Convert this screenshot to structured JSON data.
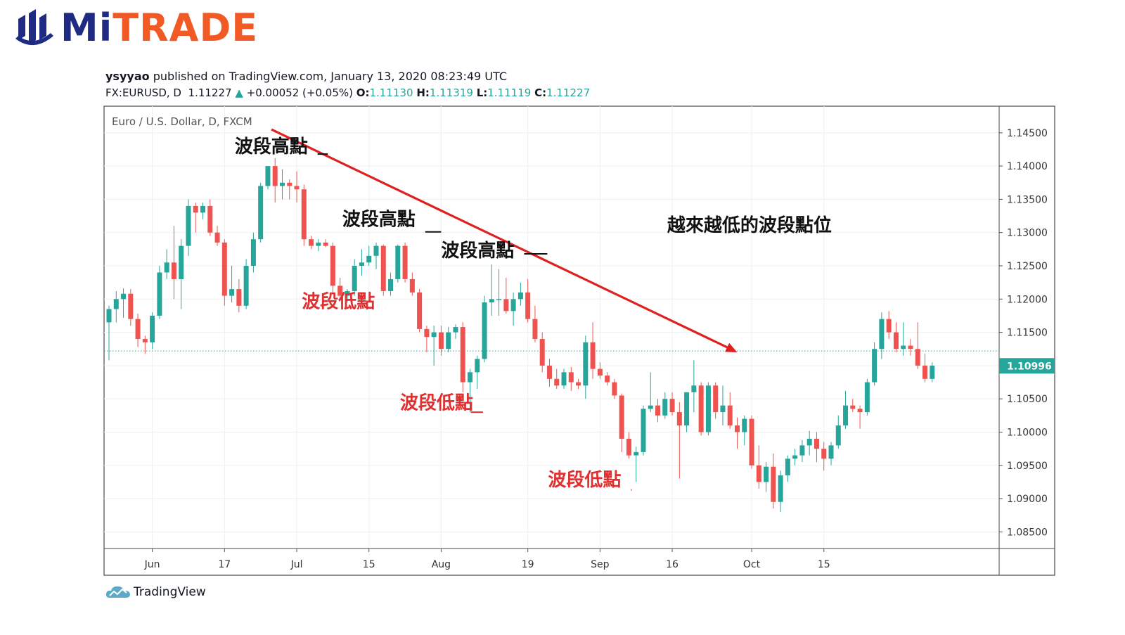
{
  "logo": {
    "mi": "Mi",
    "trade": "TRADE"
  },
  "publish": {
    "author": "ysyyao",
    "text": " published on TradingView.com, January 13, 2020 08:23:49 UTC"
  },
  "symbol": {
    "ticker": "FX:EURUSD, D",
    "close": "1.11227",
    "change": "+0.00052 (+0.05%)",
    "o_label": "O:",
    "o": "1.11130",
    "h_label": "H:",
    "h": "1.11319",
    "l_label": "L:",
    "l": "1.11119",
    "c_label": "C:",
    "c": "1.11227"
  },
  "footer": {
    "brand": "TradingView"
  },
  "colors": {
    "up": "#26a69a",
    "down": "#ef5350",
    "trend": "#e02020",
    "annotation_red": "#e03030",
    "price_tag": "#26a69a"
  },
  "chart_data": {
    "type": "candlestick",
    "title": "Euro / U.S. Dollar, D, FXCM",
    "y_ticks": [
      "1.14500",
      "1.14000",
      "1.13500",
      "1.13000",
      "1.12500",
      "1.12000",
      "1.11500",
      "1.11000",
      "1.10500",
      "1.10000",
      "1.09500",
      "1.09000",
      "1.08500"
    ],
    "ylim": [
      1.0825,
      1.149
    ],
    "x_tick_labels": [
      {
        "label": "Jun",
        "index": 6
      },
      {
        "label": "17",
        "index": 16
      },
      {
        "label": "Jul",
        "index": 26
      },
      {
        "label": "15",
        "index": 36
      },
      {
        "label": "Aug",
        "index": 46
      },
      {
        "label": "19",
        "index": 58
      },
      {
        "label": "Sep",
        "index": 68
      },
      {
        "label": "16",
        "index": 78
      },
      {
        "label": "Oct",
        "index": 89
      },
      {
        "label": "15",
        "index": 99
      }
    ],
    "current_price": "1.10996",
    "current_price_value": 1.10996,
    "dotted_level": 1.1122,
    "candles": [
      [
        1.1165,
        1.119,
        1.1108,
        1.1185
      ],
      [
        1.1185,
        1.1212,
        1.1165,
        1.12
      ],
      [
        1.12,
        1.1216,
        1.1172,
        1.1208
      ],
      [
        1.1208,
        1.1215,
        1.116,
        1.117
      ],
      [
        1.117,
        1.1178,
        1.1128,
        1.114
      ],
      [
        1.114,
        1.1145,
        1.1118,
        1.1135
      ],
      [
        1.1135,
        1.118,
        1.1125,
        1.1175
      ],
      [
        1.1175,
        1.125,
        1.117,
        1.124
      ],
      [
        1.124,
        1.1275,
        1.123,
        1.1255
      ],
      [
        1.1255,
        1.131,
        1.12,
        1.123
      ],
      [
        1.123,
        1.129,
        1.1185,
        1.128
      ],
      [
        1.128,
        1.135,
        1.1265,
        1.134
      ],
      [
        1.134,
        1.1345,
        1.13,
        1.133
      ],
      [
        1.133,
        1.1345,
        1.132,
        1.134
      ],
      [
        1.134,
        1.135,
        1.1295,
        1.13
      ],
      [
        1.13,
        1.131,
        1.128,
        1.1285
      ],
      [
        1.1285,
        1.129,
        1.119,
        1.1205
      ],
      [
        1.1205,
        1.125,
        1.1195,
        1.1215
      ],
      [
        1.1215,
        1.123,
        1.118,
        1.119
      ],
      [
        1.119,
        1.126,
        1.1185,
        1.125
      ],
      [
        1.125,
        1.13,
        1.124,
        1.129
      ],
      [
        1.129,
        1.1375,
        1.1285,
        1.137
      ],
      [
        1.137,
        1.14,
        1.1365,
        1.14
      ],
      [
        1.14,
        1.1412,
        1.1345,
        1.137
      ],
      [
        1.137,
        1.1395,
        1.135,
        1.1375
      ],
      [
        1.1375,
        1.138,
        1.135,
        1.137
      ],
      [
        1.137,
        1.1392,
        1.1345,
        1.1365
      ],
      [
        1.1365,
        1.1372,
        1.128,
        1.129
      ],
      [
        1.129,
        1.1295,
        1.1275,
        1.128
      ],
      [
        1.128,
        1.129,
        1.1272,
        1.1285
      ],
      [
        1.1285,
        1.129,
        1.1278,
        1.128
      ],
      [
        1.128,
        1.1285,
        1.121,
        1.122
      ],
      [
        1.122,
        1.1232,
        1.12,
        1.1205
      ],
      [
        1.1205,
        1.1215,
        1.1195,
        1.1212
      ],
      [
        1.1212,
        1.126,
        1.1205,
        1.125
      ],
      [
        1.125,
        1.1275,
        1.1235,
        1.1255
      ],
      [
        1.1255,
        1.128,
        1.125,
        1.1265
      ],
      [
        1.1265,
        1.1285,
        1.1245,
        1.128
      ],
      [
        1.128,
        1.1282,
        1.1205,
        1.1212
      ],
      [
        1.1212,
        1.124,
        1.1205,
        1.123
      ],
      [
        1.123,
        1.1282,
        1.1225,
        1.128
      ],
      [
        1.128,
        1.1285,
        1.1225,
        1.123
      ],
      [
        1.123,
        1.124,
        1.1205,
        1.121
      ],
      [
        1.121,
        1.1215,
        1.115,
        1.1155
      ],
      [
        1.1155,
        1.116,
        1.112,
        1.1143
      ],
      [
        1.1143,
        1.116,
        1.11,
        1.115
      ],
      [
        1.115,
        1.116,
        1.1115,
        1.1125
      ],
      [
        1.1125,
        1.1158,
        1.112,
        1.115
      ],
      [
        1.115,
        1.1162,
        1.114,
        1.1158
      ],
      [
        1.1158,
        1.1165,
        1.106,
        1.1075
      ],
      [
        1.1075,
        1.1095,
        1.103,
        1.109
      ],
      [
        1.109,
        1.1115,
        1.1065,
        1.111
      ],
      [
        1.111,
        1.1205,
        1.1105,
        1.1195
      ],
      [
        1.1195,
        1.1252,
        1.1175,
        1.12
      ],
      [
        1.12,
        1.1245,
        1.1175,
        1.12
      ],
      [
        1.12,
        1.1232,
        1.1178,
        1.1182
      ],
      [
        1.1182,
        1.121,
        1.116,
        1.12
      ],
      [
        1.12,
        1.1225,
        1.119,
        1.121
      ],
      [
        1.121,
        1.123,
        1.1165,
        1.117
      ],
      [
        1.117,
        1.119,
        1.1135,
        1.114
      ],
      [
        1.114,
        1.115,
        1.109,
        1.11
      ],
      [
        1.11,
        1.111,
        1.1068,
        1.108
      ],
      [
        1.108,
        1.1095,
        1.1065,
        1.107
      ],
      [
        1.107,
        1.1095,
        1.1065,
        1.109
      ],
      [
        1.109,
        1.1098,
        1.1062,
        1.1075
      ],
      [
        1.1075,
        1.108,
        1.1065,
        1.107
      ],
      [
        1.107,
        1.1145,
        1.105,
        1.1135
      ],
      [
        1.1135,
        1.1165,
        1.108,
        1.1095
      ],
      [
        1.1095,
        1.1105,
        1.108,
        1.1085
      ],
      [
        1.1085,
        1.109,
        1.107,
        1.1075
      ],
      [
        1.1075,
        1.108,
        1.105,
        1.1055
      ],
      [
        1.1055,
        1.1058,
        1.097,
        1.099
      ],
      [
        1.099,
        1.1,
        1.096,
        1.0965
      ],
      [
        1.0965,
        1.0978,
        1.0925,
        1.097
      ],
      [
        1.097,
        1.104,
        1.0965,
        1.1035
      ],
      [
        1.1035,
        1.109,
        1.103,
        1.104
      ],
      [
        1.104,
        1.105,
        1.1015,
        1.1025
      ],
      [
        1.1025,
        1.106,
        1.102,
        1.105
      ],
      [
        1.105,
        1.106,
        1.1025,
        1.103
      ],
      [
        1.103,
        1.1045,
        1.093,
        1.101
      ],
      [
        1.101,
        1.106,
        1.1,
        1.106
      ],
      [
        1.106,
        1.1108,
        1.103,
        1.107
      ],
      [
        1.107,
        1.1075,
        1.0995,
        1.1
      ],
      [
        1.1,
        1.1075,
        1.0995,
        1.107
      ],
      [
        1.107,
        1.1075,
        1.102,
        1.103
      ],
      [
        1.103,
        1.107,
        1.101,
        1.104
      ],
      [
        1.104,
        1.106,
        1.1005,
        1.101
      ],
      [
        1.101,
        1.1022,
        1.0975,
        1.1
      ],
      [
        1.1,
        1.1025,
        1.098,
        1.102
      ],
      [
        1.102,
        1.1025,
        1.0945,
        1.095
      ],
      [
        1.095,
        1.098,
        1.0915,
        1.0925
      ],
      [
        1.0925,
        1.0955,
        1.091,
        1.0948
      ],
      [
        1.0948,
        1.0968,
        1.0885,
        1.0895
      ],
      [
        1.0895,
        1.0942,
        1.088,
        1.0935
      ],
      [
        1.0935,
        1.0965,
        1.0925,
        1.096
      ],
      [
        1.096,
        1.0975,
        1.095,
        1.0965
      ],
      [
        1.0965,
        1.0988,
        1.0955,
        1.098
      ],
      [
        1.098,
        1.1002,
        1.0965,
        1.099
      ],
      [
        1.099,
        1.1,
        1.0955,
        1.0975
      ],
      [
        1.0975,
        1.0985,
        1.0942,
        1.096
      ],
      [
        1.096,
        1.0985,
        1.095,
        1.098
      ],
      [
        1.098,
        1.1025,
        1.0975,
        1.101
      ],
      [
        1.101,
        1.1062,
        1.1005,
        1.104
      ],
      [
        1.104,
        1.105,
        1.103,
        1.1035
      ],
      [
        1.1035,
        1.104,
        1.1005,
        1.103
      ],
      [
        1.103,
        1.108,
        1.1025,
        1.1075
      ],
      [
        1.1075,
        1.1135,
        1.107,
        1.1125
      ],
      [
        1.1125,
        1.118,
        1.111,
        1.117
      ],
      [
        1.117,
        1.1182,
        1.114,
        1.115
      ],
      [
        1.115,
        1.1165,
        1.112,
        1.1125
      ],
      [
        1.1125,
        1.1165,
        1.1115,
        1.113
      ],
      [
        1.113,
        1.114,
        1.1115,
        1.1125
      ],
      [
        1.1125,
        1.1165,
        1.1095,
        1.11
      ],
      [
        1.11,
        1.1118,
        1.1075,
        1.108
      ],
      [
        1.108,
        1.1105,
        1.1075,
        1.11
      ]
    ],
    "trend_line": {
      "from_index": 22.5,
      "from_value": 1.1455,
      "to_index": 87.0,
      "to_value": 1.112
    },
    "annotations": [
      {
        "text": "波段高點",
        "color": "black",
        "at_index": 17.4,
        "at_value": 1.142,
        "line_to_index": 30.3,
        "line_value": 1.1418
      },
      {
        "text": "波段高點",
        "color": "black",
        "at_index": 32.3,
        "at_value": 1.1311,
        "line_to_index": 46.0,
        "line_value": 1.1301
      },
      {
        "text": "波段高點",
        "color": "black",
        "at_index": 46.0,
        "at_value": 1.1264,
        "line_to_index": 60.7,
        "line_value": 1.1268
      },
      {
        "text": "越來越低的波段點位",
        "color": "black",
        "at_index": 77.3,
        "at_value": 1.1302
      },
      {
        "text": "波段低點",
        "color": "red",
        "at_index": 26.7,
        "at_value": 1.1187,
        "line_to_index": 38.2,
        "line_value": 1.1185
      },
      {
        "text": "波段低點",
        "color": "red",
        "at_index": 40.3,
        "at_value": 1.1035,
        "line_to_index": 50.1,
        "line_value": 1.103
      },
      {
        "text": "波段低點",
        "color": "red",
        "at_index": 60.8,
        "at_value": 1.0919,
        "line_to_index": 72.4,
        "line_value": 1.0913
      }
    ]
  }
}
